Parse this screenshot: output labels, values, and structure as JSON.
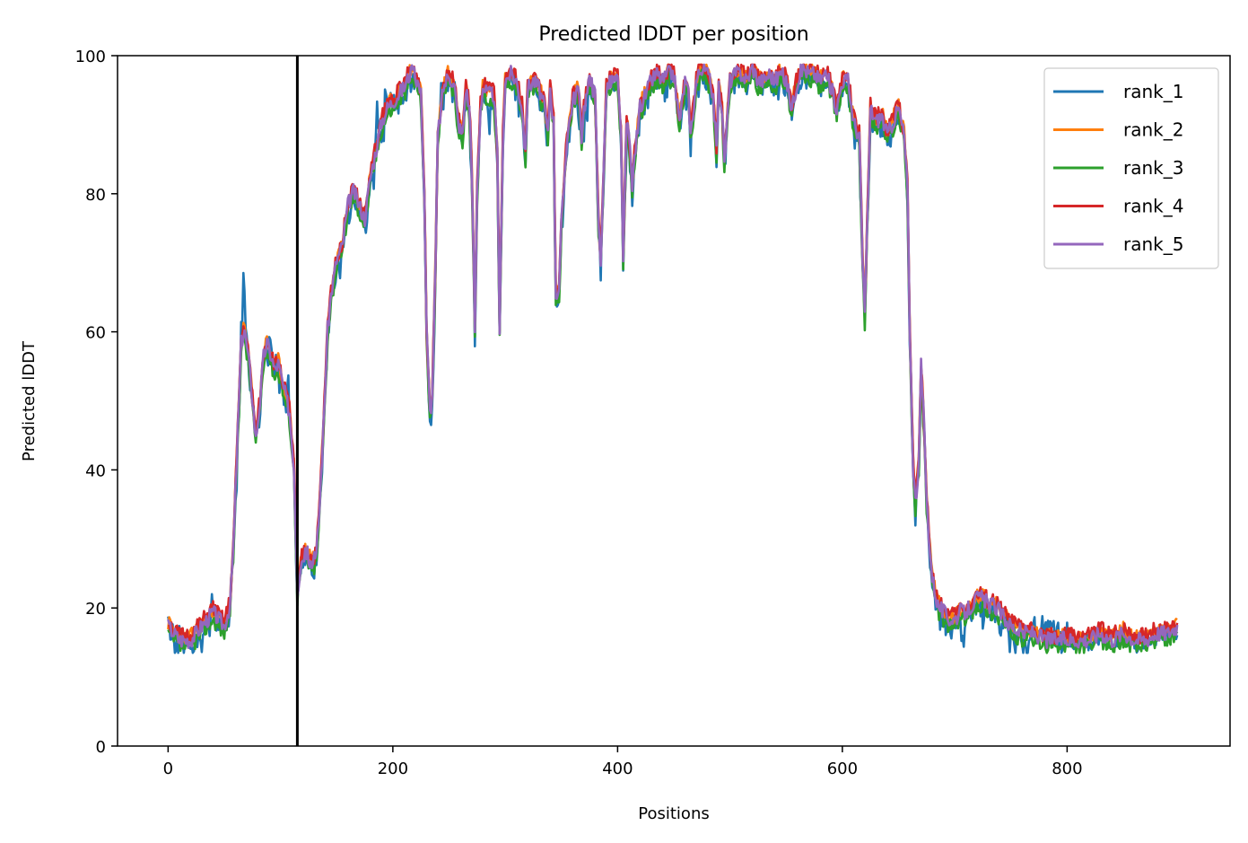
{
  "chart_data": {
    "type": "line",
    "title": "Predicted lDDT per position",
    "xlabel": "Positions",
    "ylabel": "Predicted lDDT",
    "xlim": [
      -45,
      945
    ],
    "ylim": [
      0,
      100
    ],
    "xticks": [
      0,
      200,
      400,
      600,
      800
    ],
    "yticks": [
      0,
      20,
      40,
      60,
      80,
      100
    ],
    "legend_position": "top-right",
    "grid": false,
    "vline": {
      "x": 115,
      "color": "#000000"
    },
    "series": [
      {
        "name": "rank_1",
        "color": "#1f77b4",
        "offsets": [
          2,
          0,
          -1,
          0,
          3,
          -1,
          -3,
          -2,
          0,
          -2,
          3,
          0,
          0,
          0,
          -2,
          0,
          2,
          -1,
          0,
          -2,
          0,
          -2,
          -4,
          -2,
          0,
          0,
          -3,
          -1,
          -2,
          -2,
          -6,
          0,
          0,
          0,
          0,
          0,
          -2,
          -4,
          0,
          5,
          0,
          -2,
          0,
          -3,
          0,
          -3,
          0,
          0,
          -1,
          0,
          -1,
          0,
          -1,
          0,
          -2,
          0,
          0,
          0,
          0,
          0,
          -2,
          -6,
          0,
          -1,
          -3,
          6,
          4,
          12,
          9,
          4,
          3,
          0,
          -2,
          -1,
          1,
          1,
          0,
          0,
          0,
          0,
          0,
          -2,
          -3,
          0,
          0,
          0,
          0,
          0,
          -3,
          -2,
          2,
          3,
          2,
          0,
          -1,
          -2,
          3,
          0,
          -1,
          -3,
          0,
          0,
          0,
          -2,
          0,
          -2,
          3,
          8,
          0,
          0,
          -1,
          0,
          0,
          -2,
          -3,
          0,
          0,
          0,
          0,
          0,
          0,
          0,
          -3,
          0,
          -2,
          0,
          0,
          0,
          -1,
          -1,
          -2,
          0,
          0,
          0,
          0,
          0,
          -2,
          -4,
          0,
          0,
          0,
          -2,
          0,
          -2,
          0,
          0,
          0,
          0,
          -2,
          -4,
          -3,
          0,
          -3,
          -5,
          0,
          0,
          -2,
          0,
          0,
          0,
          0,
          -3,
          -2,
          0,
          0,
          0,
          -2,
          -3,
          0,
          -1,
          0,
          0,
          -1,
          0,
          0,
          0,
          -3,
          -2,
          0,
          0,
          -2,
          0,
          -2,
          -4,
          0,
          4,
          8,
          2,
          0,
          -2,
          -2,
          0,
          -3,
          4,
          5,
          3,
          0,
          0,
          2,
          1,
          0,
          0,
          -2,
          0,
          0,
          -2,
          0,
          0,
          0,
          -1,
          0,
          -3,
          -2,
          0,
          0,
          0,
          -3,
          -1,
          0,
          -3,
          0,
          0,
          0,
          0,
          0,
          0,
          0,
          -2,
          0,
          0,
          0,
          0,
          -1,
          0,
          -2,
          0,
          -3,
          -4,
          0,
          0,
          0,
          -2,
          1,
          4,
          -2,
          -3,
          0,
          -1,
          0,
          -2,
          0,
          0,
          0,
          -2,
          0,
          0,
          -3,
          -2,
          0,
          0,
          0,
          0,
          -2,
          0,
          -2,
          -3,
          0,
          0,
          0,
          -3,
          -1,
          0,
          0,
          -3,
          -3,
          0,
          0,
          0,
          0,
          0,
          0,
          0,
          -2,
          -2,
          0,
          -2,
          -6,
          0,
          -2,
          0,
          0,
          0,
          0,
          -2,
          0,
          -1,
          0,
          0,
          -2,
          -1,
          0,
          0,
          0,
          0,
          0,
          0,
          0,
          0,
          0,
          -3,
          0,
          0,
          -3,
          -1,
          0,
          0,
          0,
          -2,
          -2,
          0,
          0,
          0,
          0,
          0,
          0,
          -1,
          0,
          -1,
          0,
          0,
          -3,
          -3,
          0,
          -1,
          0,
          0,
          0,
          -2,
          0,
          0,
          -2,
          0,
          -2,
          0,
          0,
          0,
          -2,
          -1,
          0,
          0,
          0,
          -2,
          -2,
          0,
          -1,
          -2,
          0,
          -3,
          0,
          0,
          0,
          0,
          0,
          0,
          -2,
          -4,
          -4,
          -1,
          -2,
          0,
          -5,
          0,
          -4,
          -4,
          0,
          0,
          0,
          -3,
          0,
          0,
          0,
          0,
          -2,
          -2,
          0,
          -3,
          0,
          -2,
          -3,
          0,
          0,
          0,
          0,
          0,
          -1,
          0,
          -2,
          -2,
          0,
          0,
          0,
          0,
          0,
          -2,
          0,
          0,
          0,
          -2,
          -4,
          0,
          0,
          -2,
          0,
          -2,
          -2,
          0,
          0,
          0,
          0,
          -3,
          0,
          -1,
          0,
          0,
          -2,
          0,
          0,
          -3,
          0,
          -1,
          0,
          0,
          0,
          0,
          0,
          -2,
          -1,
          0,
          0,
          0,
          -2,
          0,
          -4,
          0,
          -3,
          0,
          0,
          -2,
          -1,
          0,
          0,
          0,
          0,
          0,
          0,
          0,
          -2,
          -2,
          0,
          0,
          0,
          -3,
          0,
          0,
          0,
          -3,
          0,
          0,
          -1,
          0,
          0,
          -1,
          -3,
          0,
          0,
          -2,
          -2,
          0,
          -3,
          -3,
          -1,
          0,
          0,
          -2,
          0,
          0,
          -1,
          0,
          -2,
          -1,
          0,
          0,
          0,
          -2,
          -2,
          0,
          -3,
          0,
          0,
          0,
          0,
          0,
          0,
          0,
          -2,
          0,
          0,
          0,
          -2,
          0,
          0,
          -1,
          0,
          -2,
          0,
          -1,
          0,
          0,
          0,
          0,
          0,
          0,
          0,
          0,
          0,
          -2,
          0,
          0,
          0,
          -3,
          0,
          0,
          0,
          -1,
          0,
          -2,
          -2,
          -2,
          -2,
          -2,
          -1,
          0,
          0,
          -3,
          -1,
          0,
          0,
          0,
          -2,
          -3,
          0,
          0,
          0,
          0,
          0,
          -3,
          -2,
          0,
          0,
          0,
          -2,
          -2,
          -2,
          -2,
          -1,
          0,
          -2,
          0,
          -3,
          0,
          -2,
          0,
          0,
          0,
          0,
          0,
          0,
          0,
          0,
          -1,
          0,
          -2,
          0,
          -2,
          -2,
          -1,
          0,
          0,
          -2,
          0,
          -1,
          0,
          0,
          0,
          -2,
          0,
          0,
          -2,
          -2,
          0,
          -2,
          0,
          -1,
          -1,
          0,
          0,
          -2,
          -1,
          0,
          -2,
          0,
          -3,
          0,
          0,
          0,
          0,
          -2,
          0,
          -2,
          0,
          -2,
          0,
          0,
          0,
          -2,
          -2,
          0,
          -2,
          0,
          0,
          0,
          0,
          0,
          0,
          -2,
          0,
          -2,
          0,
          0,
          0,
          0,
          0,
          -2,
          -2,
          0,
          0,
          0,
          0,
          0,
          0,
          -2,
          0,
          -3,
          0,
          0,
          0,
          0,
          0,
          -2,
          -3,
          -2,
          0,
          0,
          0,
          0,
          -3,
          0,
          0,
          0,
          -2,
          -2,
          0,
          -4,
          0,
          0,
          0,
          0,
          -3,
          -2,
          0,
          0,
          0,
          0,
          -3,
          0,
          0,
          0,
          -3,
          0,
          -2,
          0,
          0,
          -3,
          -3,
          -2,
          0,
          -4,
          -4,
          -2,
          0,
          0,
          0,
          0,
          0,
          0,
          -2,
          -4,
          -5,
          -5,
          -4,
          -3,
          -1,
          2,
          -1,
          -2,
          -1,
          0,
          0,
          0,
          -2,
          -1,
          0,
          3,
          -2,
          0,
          -4,
          -2,
          0,
          0,
          0,
          -1,
          -2,
          -2,
          0,
          0,
          0,
          -2,
          -1,
          0,
          -2,
          -4,
          -4,
          0,
          -1,
          0,
          0,
          0,
          -2,
          0,
          -4,
          -2,
          0,
          0,
          -2,
          -5,
          -2,
          0,
          0,
          -1,
          -2,
          -2,
          -5,
          0,
          -2,
          -3,
          -5,
          -2,
          0,
          3,
          0,
          2,
          3,
          -1,
          0,
          1,
          1,
          2,
          1,
          4,
          2,
          3,
          5,
          0,
          4,
          2,
          5,
          3,
          3,
          3,
          2,
          0,
          2,
          4,
          1,
          2,
          -2,
          0,
          3,
          0,
          -1,
          3,
          0,
          1,
          0,
          1,
          -1,
          0,
          0,
          1,
          0,
          0,
          -1,
          0,
          1,
          1,
          0,
          0,
          0,
          0,
          0,
          2,
          0,
          -1,
          0,
          0,
          1,
          0,
          -1,
          -1,
          0,
          0,
          0,
          0,
          1,
          0,
          -1,
          0,
          1,
          0,
          0,
          0,
          0,
          0,
          0,
          0,
          -1,
          0,
          1,
          0,
          0,
          -1,
          0,
          0,
          0,
          0,
          0,
          0,
          0,
          1,
          0,
          0,
          0,
          -1,
          0,
          0,
          1,
          0,
          0,
          0,
          -1,
          0,
          0,
          0,
          0,
          0,
          0,
          1,
          0,
          0,
          -1,
          0,
          1,
          0,
          0,
          0,
          0,
          0,
          0,
          1,
          -1,
          1,
          0,
          0,
          0,
          0,
          0,
          0,
          -1,
          0,
          0,
          1,
          0,
          0,
          0,
          0,
          0,
          0,
          0,
          -1,
          0,
          0,
          0,
          0,
          0,
          0,
          0,
          0,
          0,
          0,
          1,
          0,
          0,
          0,
          0,
          0,
          0,
          -1,
          0,
          1,
          0,
          0,
          0,
          -1,
          0,
          0,
          0,
          0,
          0,
          1,
          0,
          0,
          0,
          0,
          -1,
          0,
          0,
          0,
          0,
          0,
          0,
          1,
          0,
          0,
          0,
          0,
          0,
          0,
          -1,
          0,
          1,
          -1,
          0,
          0,
          0,
          1,
          0,
          0,
          0,
          -1,
          0,
          0,
          0,
          0,
          0,
          1,
          0,
          0,
          0,
          0,
          -1,
          0,
          0,
          0,
          0,
          1,
          0,
          0,
          -1,
          0,
          0,
          0,
          0,
          1,
          0,
          0,
          0,
          -1,
          0,
          0,
          0,
          0,
          0,
          0,
          1,
          0,
          0,
          0,
          0
        ]
      },
      {
        "name": "rank_2",
        "color": "#ff7f0e",
        "offsets": []
      },
      {
        "name": "rank_3",
        "color": "#2ca02c",
        "offsets": []
      },
      {
        "name": "rank_4",
        "color": "#d62728",
        "offsets": []
      },
      {
        "name": "rank_5",
        "color": "#9467bd",
        "offsets": []
      }
    ],
    "profile": {
      "x": [
        0,
        5,
        10,
        15,
        20,
        25,
        30,
        35,
        40,
        45,
        50,
        55,
        58,
        62,
        65,
        68,
        72,
        75,
        78,
        82,
        85,
        88,
        92,
        95,
        98,
        102,
        105,
        108,
        112,
        115,
        118,
        122,
        125,
        128,
        132,
        135,
        138,
        142,
        145,
        148,
        150,
        155,
        160,
        165,
        170,
        175,
        180,
        185,
        190,
        195,
        200,
        205,
        210,
        215,
        218,
        222,
        225,
        228,
        230,
        233,
        235,
        238,
        240,
        245,
        250,
        255,
        258,
        262,
        265,
        268,
        270,
        273,
        275,
        278,
        280,
        285,
        290,
        293,
        295,
        298,
        300,
        305,
        310,
        315,
        318,
        320,
        325,
        330,
        335,
        338,
        340,
        343,
        345,
        348,
        350,
        355,
        360,
        365,
        368,
        370,
        375,
        380,
        383,
        385,
        388,
        390,
        395,
        400,
        403,
        405,
        408,
        410,
        413,
        415,
        420,
        425,
        430,
        435,
        440,
        445,
        450,
        455,
        460,
        463,
        465,
        470,
        475,
        480,
        485,
        488,
        490,
        493,
        495,
        500,
        505,
        510,
        515,
        520,
        525,
        530,
        535,
        540,
        545,
        550,
        555,
        560,
        565,
        570,
        575,
        580,
        585,
        590,
        595,
        600,
        605,
        610,
        615,
        618,
        620,
        623,
        625,
        630,
        635,
        640,
        645,
        650,
        655,
        658,
        660,
        663,
        665,
        668,
        670,
        673,
        675,
        678,
        680,
        685,
        690,
        695,
        700,
        705,
        710,
        715,
        720,
        725,
        730,
        735,
        740,
        745,
        750,
        760,
        770,
        780,
        790,
        800,
        810,
        820,
        830,
        840,
        850,
        860,
        870,
        880,
        890,
        898
      ],
      "y": [
        17,
        16,
        15,
        15,
        15,
        16,
        17,
        18,
        19,
        18,
        17,
        20,
        28,
        45,
        58,
        60,
        55,
        50,
        44,
        50,
        56,
        58,
        56,
        54,
        55,
        52,
        50,
        48,
        40,
        22,
        26,
        28,
        27,
        26,
        27,
        35,
        45,
        60,
        65,
        68,
        70,
        72,
        78,
        80,
        78,
        76,
        82,
        86,
        90,
        92,
        93,
        94,
        95,
        97,
        97,
        96,
        94,
        80,
        60,
        48,
        50,
        70,
        88,
        95,
        97,
        95,
        90,
        88,
        95,
        92,
        85,
        60,
        80,
        92,
        95,
        94,
        94,
        85,
        60,
        88,
        96,
        97,
        96,
        92,
        85,
        95,
        96,
        95,
        92,
        88,
        95,
        90,
        65,
        66,
        75,
        88,
        93,
        95,
        88,
        92,
        96,
        94,
        75,
        70,
        85,
        95,
        96,
        96,
        88,
        70,
        90,
        88,
        80,
        85,
        92,
        94,
        96,
        97,
        96,
        97,
        97,
        90,
        96,
        94,
        88,
        96,
        98,
        97,
        94,
        86,
        95,
        92,
        84,
        96,
        97,
        97,
        96,
        98,
        96,
        96,
        97,
        96,
        97,
        96,
        92,
        96,
        98,
        97,
        97,
        96,
        97,
        95,
        92,
        96,
        96,
        90,
        88,
        70,
        62,
        80,
        92,
        90,
        91,
        88,
        90,
        92,
        88,
        80,
        60,
        40,
        35,
        40,
        55,
        45,
        35,
        28,
        24,
        20,
        19,
        18,
        18,
        19,
        19,
        20,
        21,
        21,
        20,
        20,
        19,
        18,
        17,
        16,
        16,
        15,
        15,
        15,
        15,
        15,
        16,
        15,
        16,
        15,
        15,
        16,
        16,
        17
      ]
    }
  }
}
